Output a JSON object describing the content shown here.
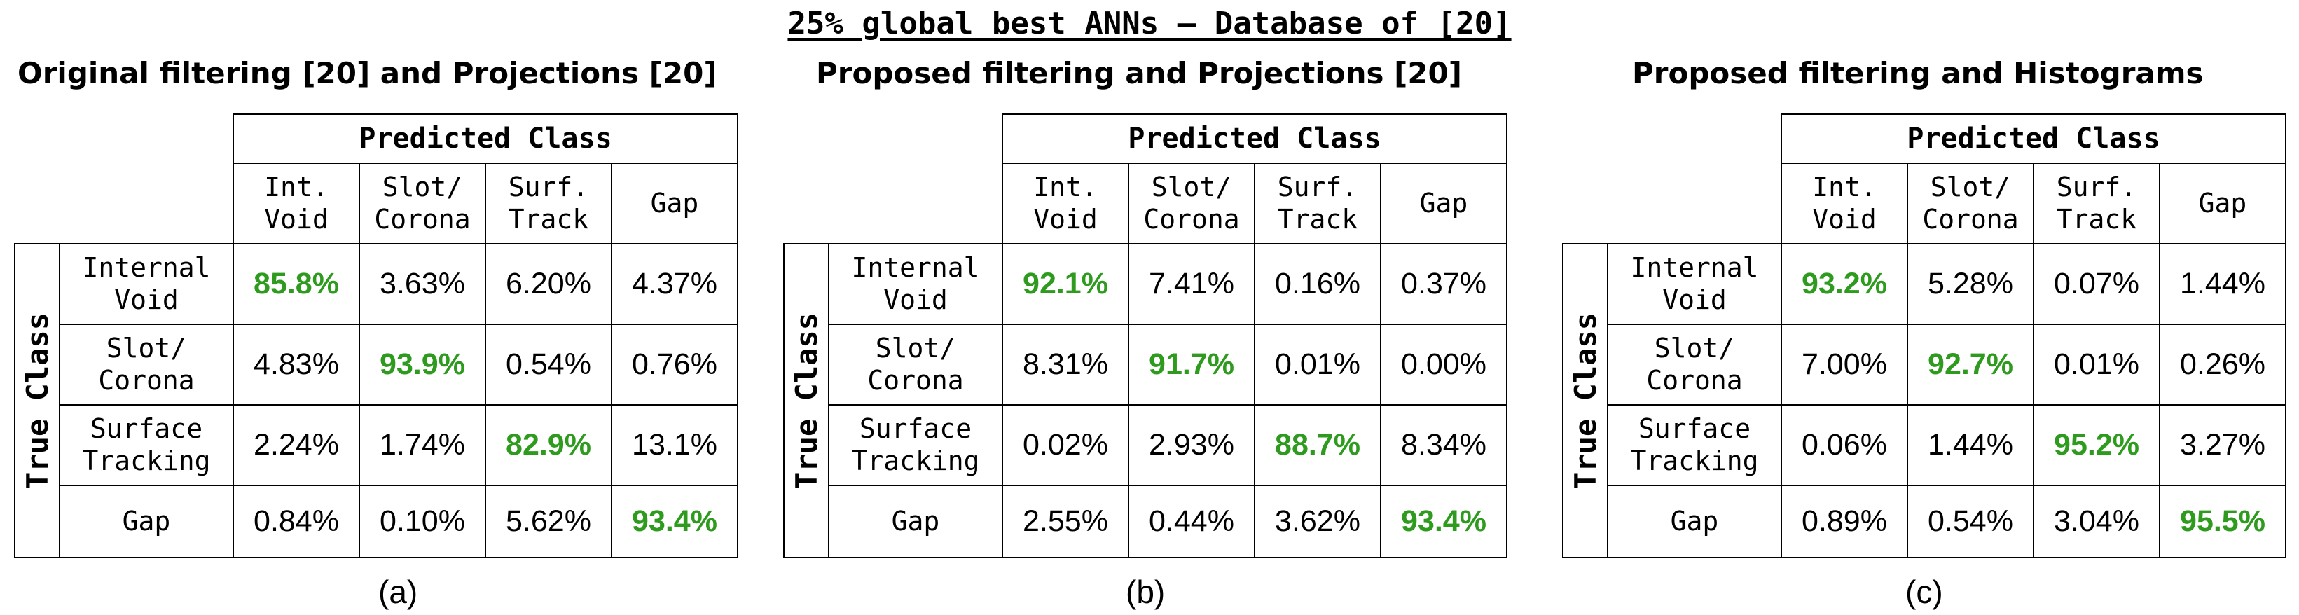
{
  "title": "25% global best ANNs – Database of [20]",
  "colors": {
    "diagonal": "#2e9b1f",
    "text": "#000000",
    "border": "#000000"
  },
  "chart_data": [
    {
      "type": "table",
      "title": "Original filtering [20] and Projections [20]",
      "caption": "(a)",
      "column_group_label": "Predicted Class",
      "row_group_label": "True Class",
      "columns": [
        "Int.\nVoid",
        "Slot/\nCorona",
        "Surf.\nTrack",
        "Gap"
      ],
      "rows": [
        "Internal\nVoid",
        "Slot/\nCorona",
        "Surface\nTracking",
        "Gap"
      ],
      "cells": [
        [
          "85.8%",
          "3.63%",
          "6.20%",
          "4.37%"
        ],
        [
          "4.83%",
          "93.9%",
          "0.54%",
          "0.76%"
        ],
        [
          "2.24%",
          "1.74%",
          "82.9%",
          "13.1%"
        ],
        [
          "0.84%",
          "0.10%",
          "5.62%",
          "93.4%"
        ]
      ]
    },
    {
      "type": "table",
      "title": "Proposed filtering and Projections [20]",
      "caption": "(b)",
      "column_group_label": "Predicted Class",
      "row_group_label": "True Class",
      "columns": [
        "Int.\nVoid",
        "Slot/\nCorona",
        "Surf.\nTrack",
        "Gap"
      ],
      "rows": [
        "Internal\nVoid",
        "Slot/\nCorona",
        "Surface\nTracking",
        "Gap"
      ],
      "cells": [
        [
          "92.1%",
          "7.41%",
          "0.16%",
          "0.37%"
        ],
        [
          "8.31%",
          "91.7%",
          "0.01%",
          "0.00%"
        ],
        [
          "0.02%",
          "2.93%",
          "88.7%",
          "8.34%"
        ],
        [
          "2.55%",
          "0.44%",
          "3.62%",
          "93.4%"
        ]
      ]
    },
    {
      "type": "table",
      "title": "Proposed filtering and Histograms",
      "caption": "(c)",
      "column_group_label": "Predicted Class",
      "row_group_label": "True Class",
      "columns": [
        "Int.\nVoid",
        "Slot/\nCorona",
        "Surf.\nTrack",
        "Gap"
      ],
      "rows": [
        "Internal\nVoid",
        "Slot/\nCorona",
        "Surface\nTracking",
        "Gap"
      ],
      "cells": [
        [
          "93.2%",
          "5.28%",
          "0.07%",
          "1.44%"
        ],
        [
          "7.00%",
          "92.7%",
          "0.01%",
          "0.26%"
        ],
        [
          "0.06%",
          "1.44%",
          "95.2%",
          "3.27%"
        ],
        [
          "0.89%",
          "0.54%",
          "3.04%",
          "95.5%"
        ]
      ]
    }
  ]
}
